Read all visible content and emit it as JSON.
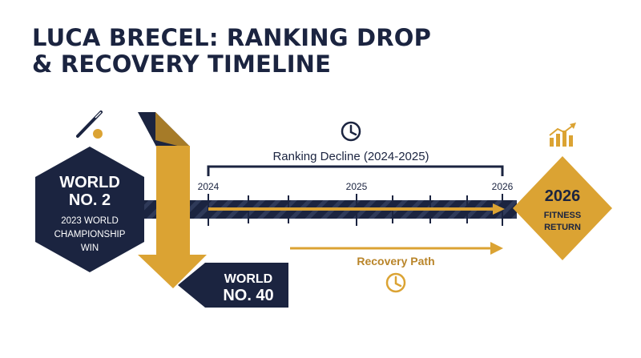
{
  "title": {
    "line1": "LUCA BRECEL: RANKING DROP",
    "line2": "& RECOVERY TIMELINE"
  },
  "colors": {
    "navy": "#1b2440",
    "gold": "#dba333",
    "gold_dark": "#b9852a",
    "white": "#ffffff"
  },
  "start_badge": {
    "line1": "WORLD",
    "line2": "NO. 2",
    "caption1": "2023 WORLD",
    "caption2": "CHAMPIONSHIP",
    "caption3": "WIN",
    "icon": "snooker-cue-icon"
  },
  "drop_badge": {
    "line1": "WORLD",
    "line2": "NO. 40"
  },
  "end_badge": {
    "year": "2026",
    "line1": "FITNESS",
    "line2": "RETURN",
    "icon": "growth-chart-icon"
  },
  "timeline": {
    "decline_label": "Ranking Decline (2024-2025)",
    "recovery_label": "Recovery Path",
    "years": [
      "2024",
      "2025",
      "2026"
    ],
    "top_icon": "clock-icon",
    "bottom_icon": "clock-icon"
  }
}
